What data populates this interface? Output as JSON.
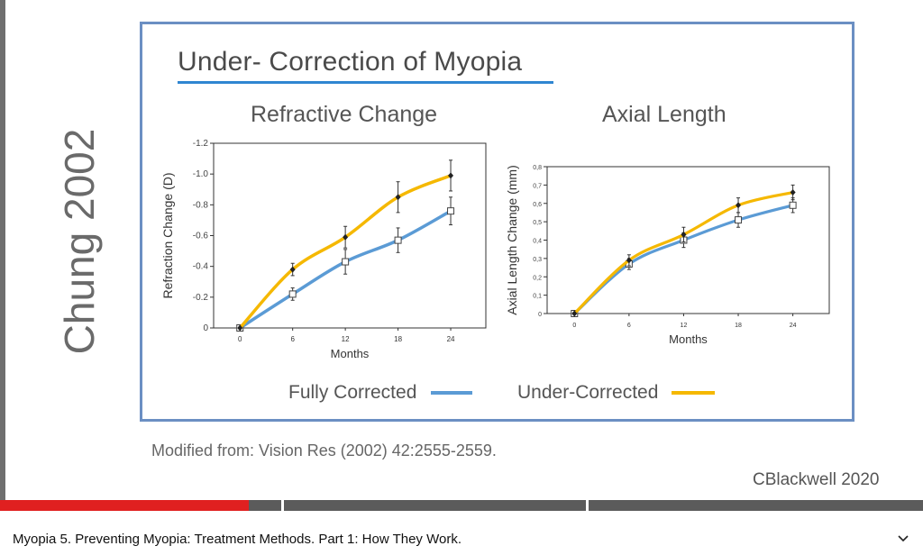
{
  "slide": {
    "title": "Under- Correction of Myopia",
    "side_title": "Chung 2002",
    "source_note": "Modified from: Vision Res (2002) 42:2555-2559.",
    "credit": "CBlackwell 2020",
    "legend": [
      {
        "label": "Fully Corrected",
        "color": "#5b9bd5"
      },
      {
        "label": "Under-Corrected",
        "color": "#f5b800"
      }
    ]
  },
  "video": {
    "title": "Myopia 5. Preventing Myopia: Treatment Methods. Part 1: How They Work.",
    "progress_fraction": 0.27,
    "expand_icon": "chevron-down-icon"
  },
  "chart_data": [
    {
      "type": "line",
      "title": "Refractive Change",
      "xlabel": "Months",
      "ylabel": "Refraction Change (D)",
      "x": [
        0,
        6,
        12,
        18,
        24
      ],
      "xticks": [
        "0",
        "6",
        "12",
        "18",
        "24"
      ],
      "xlim": [
        -3,
        28
      ],
      "ylim": [
        0,
        -1.2
      ],
      "yticks": [
        "0",
        "-0.2",
        "-0.4",
        "-0.6",
        "-0.8",
        "-1.0",
        "-1.2"
      ],
      "series": [
        {
          "name": "Fully Corrected",
          "color": "#5b9bd5",
          "values": [
            0,
            -0.22,
            -0.43,
            -0.57,
            -0.76
          ],
          "errors": [
            0,
            0.04,
            0.08,
            0.08,
            0.09
          ]
        },
        {
          "name": "Under-Corrected",
          "color": "#f5b800",
          "values": [
            0,
            -0.38,
            -0.59,
            -0.85,
            -0.99
          ],
          "errors": [
            0,
            0.04,
            0.07,
            0.1,
            0.1
          ]
        }
      ]
    },
    {
      "type": "line",
      "title": "Axial Length",
      "xlabel": "Months",
      "ylabel": "Axial Length Change (mm)",
      "x": [
        0,
        6,
        12,
        18,
        24
      ],
      "xticks": [
        "0",
        "6",
        "12",
        "18",
        "24"
      ],
      "xlim": [
        -3,
        28
      ],
      "ylim": [
        0,
        0.8
      ],
      "yticks": [
        "0",
        "0,1",
        "0,2",
        "0,3",
        "0,4",
        "0,5",
        "0,6",
        "0,7",
        "0,8"
      ],
      "series": [
        {
          "name": "Fully Corrected",
          "color": "#5b9bd5",
          "values": [
            0,
            0.27,
            0.4,
            0.51,
            0.59
          ],
          "errors": [
            0,
            0.03,
            0.04,
            0.04,
            0.04
          ]
        },
        {
          "name": "Under-Corrected",
          "color": "#f5b800",
          "values": [
            0,
            0.29,
            0.43,
            0.59,
            0.66
          ],
          "errors": [
            0,
            0.03,
            0.04,
            0.04,
            0.04
          ]
        }
      ]
    }
  ]
}
